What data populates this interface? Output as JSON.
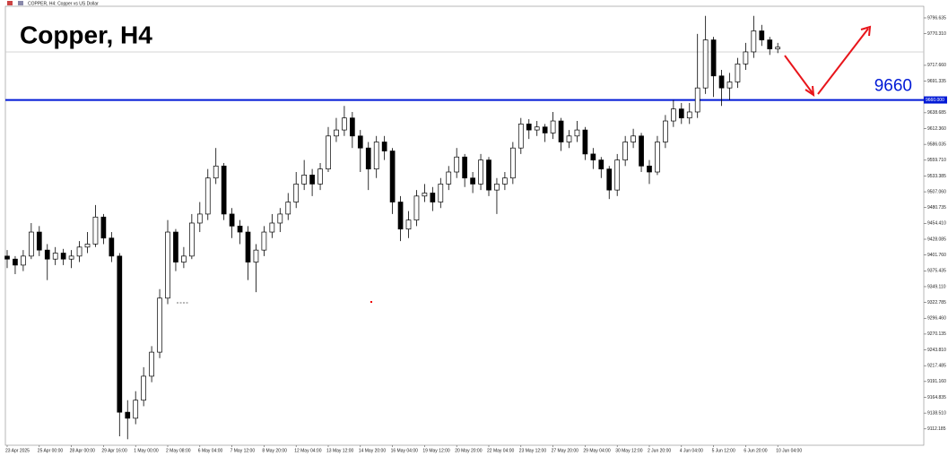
{
  "chart_data": {
    "type": "candlestick",
    "header": "COPPER, H4: Copper vs US Dollar",
    "title": "Copper, H4",
    "categories": [
      "23 Apr 2025",
      null,
      null,
      null,
      "25 Apr 00:00",
      null,
      null,
      null,
      "28 Apr 00:00",
      null,
      null,
      null,
      "29 Apr 16:00",
      null,
      null,
      null,
      "1 May 00:00",
      null,
      null,
      null,
      "2 May 08:00",
      null,
      null,
      null,
      "6 May 04:00",
      null,
      null,
      null,
      "7 May 12:00",
      null,
      null,
      null,
      "8 May 20:00",
      null,
      null,
      null,
      "12 May 04:00",
      null,
      null,
      null,
      "13 May 12:00",
      null,
      null,
      null,
      "14 May 20:00",
      null,
      null,
      null,
      "16 May 04:00",
      null,
      null,
      null,
      "19 May 12:00",
      null,
      null,
      null,
      "20 May 20:00",
      null,
      null,
      null,
      "22 May 04:00",
      null,
      null,
      null,
      "23 May 12:00",
      null,
      null,
      null,
      "27 May 20:00",
      null,
      null,
      null,
      "29 May 04:00",
      null,
      null,
      null,
      "30 May 12:00",
      null,
      null,
      null,
      "2 Jun 20:00",
      null,
      null,
      null,
      "4 Jun 04:00",
      null,
      null,
      null,
      "5 Jun 12:00",
      null,
      null,
      null,
      "6 Jun 20:00",
      null,
      null,
      null,
      "10 Jun 04:00"
    ],
    "open": [
      9400,
      9395,
      9385,
      9400,
      9440,
      9410,
      9395,
      9405,
      9395,
      9400,
      9415,
      9420,
      9465,
      9430,
      9400,
      9140,
      9130,
      9160,
      9200,
      9240,
      9330,
      9440,
      9390,
      9400,
      9455,
      9470,
      9530,
      9550,
      9470,
      9450,
      9440,
      9390,
      9410,
      9440,
      9455,
      9470,
      9490,
      9520,
      9535,
      9520,
      9545,
      9600,
      9610,
      9630,
      9600,
      9580,
      9545,
      9590,
      9575,
      9490,
      9445,
      9460,
      9500,
      9505,
      9490,
      9520,
      9540,
      9565,
      9530,
      9520,
      9560,
      9510,
      9520,
      9530,
      9580,
      9620,
      9610,
      9615,
      9605,
      9625,
      9590,
      9600,
      9610,
      9570,
      9560,
      9545,
      9510,
      9560,
      9590,
      9600,
      9550,
      9540,
      9590,
      9625,
      9645,
      9630,
      9640,
      9680,
      9760,
      9700,
      9680,
      9690,
      9720,
      9740,
      9775,
      9760,
      9745
    ],
    "high": [
      9410,
      9400,
      9410,
      9455,
      9450,
      9420,
      9415,
      9412,
      9410,
      9425,
      9440,
      9485,
      9470,
      9440,
      9405,
      9160,
      9175,
      9215,
      9250,
      9345,
      9460,
      9445,
      9415,
      9470,
      9490,
      9545,
      9580,
      9555,
      9480,
      9460,
      9450,
      9420,
      9450,
      9470,
      9480,
      9505,
      9540,
      9560,
      9545,
      9555,
      9615,
      9630,
      9650,
      9640,
      9610,
      9590,
      9600,
      9600,
      9580,
      9500,
      9475,
      9510,
      9520,
      9515,
      9530,
      9550,
      9580,
      9570,
      9540,
      9570,
      9565,
      9530,
      9540,
      9590,
      9630,
      9628,
      9625,
      9620,
      9640,
      9630,
      9610,
      9625,
      9615,
      9580,
      9565,
      9550,
      9570,
      9600,
      9612,
      9605,
      9560,
      9600,
      9635,
      9660,
      9655,
      9655,
      9770,
      9800,
      9765,
      9710,
      9705,
      9730,
      9755,
      9800,
      9785,
      9765,
      9755
    ],
    "low": [
      9380,
      9370,
      9375,
      9395,
      9400,
      9360,
      9385,
      9385,
      9380,
      9390,
      9405,
      9415,
      9420,
      9390,
      9100,
      9095,
      9120,
      9150,
      9190,
      9230,
      9320,
      9375,
      9380,
      9395,
      9440,
      9460,
      9520,
      9460,
      9430,
      9420,
      9360,
      9340,
      9400,
      9430,
      9440,
      9460,
      9480,
      9510,
      9500,
      9510,
      9540,
      9590,
      9600,
      9580,
      9540,
      9510,
      9530,
      9560,
      9470,
      9425,
      9430,
      9450,
      9490,
      9475,
      9480,
      9510,
      9530,
      9515,
      9505,
      9510,
      9500,
      9470,
      9510,
      9520,
      9570,
      9595,
      9600,
      9590,
      9595,
      9575,
      9580,
      9590,
      9560,
      9545,
      9530,
      9495,
      9500,
      9550,
      9580,
      9540,
      9520,
      9535,
      9580,
      9615,
      9620,
      9620,
      9630,
      9670,
      9665,
      9650,
      9660,
      9680,
      9710,
      9730,
      9750,
      9735,
      9738
    ],
    "close": [
      9395,
      9385,
      9400,
      9440,
      9410,
      9395,
      9405,
      9395,
      9400,
      9415,
      9420,
      9465,
      9430,
      9400,
      9140,
      9130,
      9160,
      9200,
      9240,
      9330,
      9440,
      9390,
      9400,
      9455,
      9470,
      9530,
      9550,
      9470,
      9450,
      9440,
      9390,
      9410,
      9440,
      9455,
      9470,
      9490,
      9520,
      9535,
      9520,
      9545,
      9600,
      9610,
      9630,
      9600,
      9580,
      9545,
      9590,
      9575,
      9490,
      9445,
      9460,
      9500,
      9505,
      9490,
      9520,
      9540,
      9565,
      9530,
      9520,
      9560,
      9510,
      9520,
      9530,
      9580,
      9620,
      9610,
      9615,
      9605,
      9625,
      9590,
      9600,
      9610,
      9570,
      9560,
      9545,
      9510,
      9560,
      9590,
      9600,
      9550,
      9540,
      9590,
      9625,
      9645,
      9630,
      9640,
      9680,
      9760,
      9700,
      9680,
      9690,
      9720,
      9740,
      9775,
      9760,
      9745,
      9748
    ],
    "up_color": "#ffffff",
    "down_color": "#000000",
    "ylim": [
      9085,
      9816
    ],
    "yticks": [
      9796.635,
      {
        "value": 9770.31,
        "label": "9770.310"
      },
      {
        "value": 9717.66,
        "label": "9717.660"
      },
      9691.335,
      9638.685,
      {
        "value": 9612.36,
        "label": "9612.360"
      },
      9586.035,
      {
        "value": 9559.71,
        "label": "9559.710"
      },
      9533.385,
      {
        "value": 9507.06,
        "label": "9507.060"
      },
      9480.735,
      {
        "value": 9454.41,
        "label": "9454.410"
      },
      9428.085,
      {
        "value": 9401.76,
        "label": "9401.760"
      },
      9375.435,
      {
        "value": 9349.11,
        "label": "9349.110"
      },
      9322.785,
      {
        "value": 9296.46,
        "label": "9296.460"
      },
      9270.135,
      {
        "value": 9243.81,
        "label": "9243.810"
      },
      9217.485,
      {
        "value": 9191.16,
        "label": "9191.160"
      },
      9164.835,
      {
        "value": 9138.51,
        "label": "9138.510"
      },
      9112.185
    ],
    "level": {
      "value": 9660,
      "label": "9660",
      "axis_label": "9660.000",
      "color": "#0019d6"
    }
  }
}
